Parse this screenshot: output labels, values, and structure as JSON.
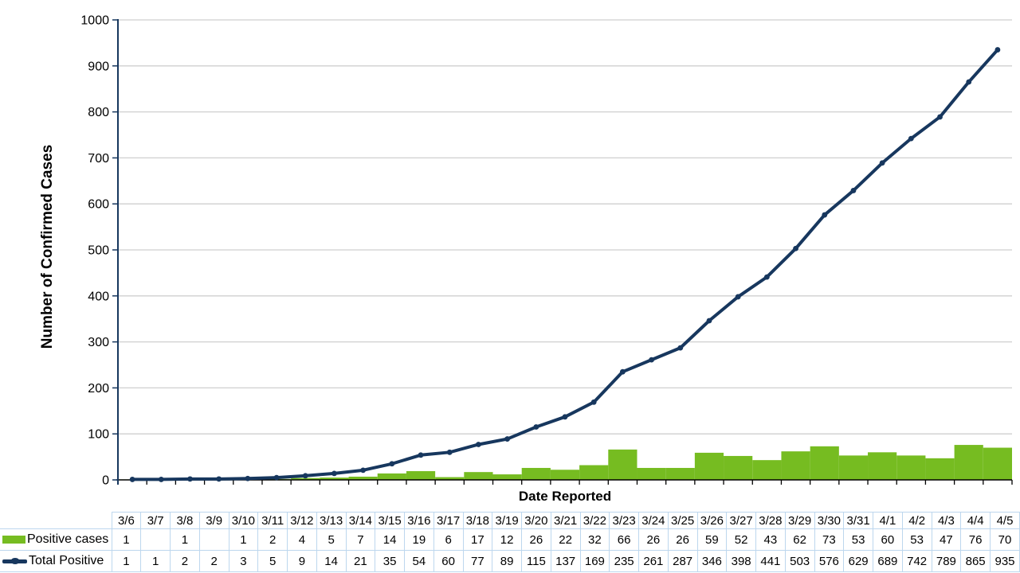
{
  "chart_data": {
    "type": "bar+line combo",
    "title": "",
    "xlabel": "Date Reported",
    "ylabel": "Number of Confirmed Cases",
    "ylim": [
      0,
      1000
    ],
    "yticks": [
      0,
      100,
      200,
      300,
      400,
      500,
      600,
      700,
      800,
      900,
      1000
    ],
    "grid": "horizontal gridlines only",
    "legend_position": "data-table-left",
    "categories": [
      "3/6",
      "3/7",
      "3/8",
      "3/9",
      "3/10",
      "3/11",
      "3/12",
      "3/13",
      "3/14",
      "3/15",
      "3/16",
      "3/17",
      "3/18",
      "3/19",
      "3/20",
      "3/21",
      "3/22",
      "3/23",
      "3/24",
      "3/25",
      "3/26",
      "3/27",
      "3/28",
      "3/29",
      "3/30",
      "3/31",
      "4/1",
      "4/2",
      "4/3",
      "4/4",
      "4/5"
    ],
    "series": [
      {
        "name": "Positive cases",
        "type": "bar",
        "color": "#76BC21",
        "values": [
          1,
          null,
          1,
          null,
          1,
          2,
          4,
          5,
          7,
          14,
          19,
          6,
          17,
          12,
          26,
          22,
          32,
          66,
          26,
          26,
          59,
          52,
          43,
          62,
          73,
          53,
          60,
          53,
          47,
          76,
          70
        ]
      },
      {
        "name": "Total Positive",
        "type": "line",
        "color": "#17375E",
        "values": [
          1,
          1,
          2,
          2,
          3,
          5,
          9,
          14,
          21,
          35,
          54,
          60,
          77,
          89,
          115,
          137,
          169,
          235,
          261,
          287,
          346,
          398,
          441,
          503,
          576,
          629,
          689,
          742,
          789,
          865,
          935
        ]
      }
    ]
  },
  "colors": {
    "bar": "#76BC21",
    "line": "#17375E",
    "grid": "#CFCFCF",
    "y_axis": "#17375E",
    "x_axis": "#000000",
    "table_border": "#BDD7EE",
    "text": "#000000",
    "background": "#FFFFFF"
  }
}
